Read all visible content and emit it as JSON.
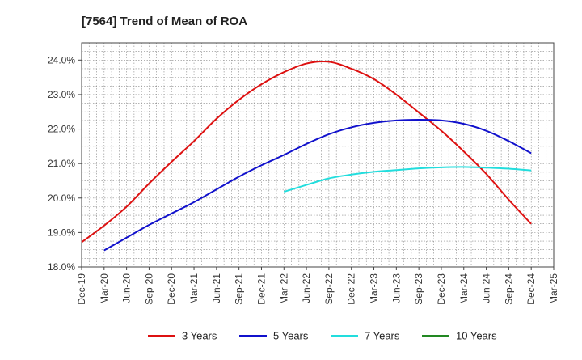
{
  "chart_data": {
    "type": "line",
    "title": "[7564]  Trend of Mean of ROA",
    "xlabel": "",
    "ylabel": "",
    "ylim": [
      18.0,
      24.5
    ],
    "y_ticks": [
      18.0,
      19.0,
      20.0,
      21.0,
      22.0,
      23.0,
      24.0
    ],
    "y_tick_suffix": "%",
    "grid": true,
    "legend_position": "bottom",
    "x_categories": [
      "Dec-19",
      "Mar-20",
      "Jun-20",
      "Sep-20",
      "Dec-20",
      "Mar-21",
      "Jun-21",
      "Sep-21",
      "Dec-21",
      "Mar-22",
      "Jun-22",
      "Sep-22",
      "Dec-22",
      "Mar-23",
      "Jun-23",
      "Sep-23",
      "Dec-23",
      "Mar-24",
      "Jun-24",
      "Sep-24",
      "Dec-24",
      "Mar-25"
    ],
    "series": [
      {
        "name": "3 Years",
        "color": "#dd1111",
        "values": [
          18.72,
          19.2,
          19.75,
          20.42,
          21.05,
          21.65,
          22.3,
          22.85,
          23.3,
          23.65,
          23.9,
          23.95,
          23.75,
          23.45,
          23.0,
          22.48,
          21.95,
          21.35,
          20.7,
          19.95,
          19.25,
          null
        ]
      },
      {
        "name": "5 Years",
        "color": "#1111cc",
        "values": [
          null,
          18.48,
          18.85,
          19.22,
          19.55,
          19.88,
          20.25,
          20.62,
          20.95,
          21.25,
          21.57,
          21.85,
          22.05,
          22.18,
          22.25,
          22.27,
          22.25,
          22.15,
          21.95,
          21.65,
          21.3,
          null
        ]
      },
      {
        "name": "7 Years",
        "color": "#22dddd",
        "values": [
          null,
          null,
          null,
          null,
          null,
          null,
          null,
          null,
          null,
          20.18,
          20.38,
          20.57,
          20.68,
          20.76,
          20.81,
          20.86,
          20.89,
          20.9,
          20.88,
          20.85,
          20.8,
          null
        ]
      },
      {
        "name": "10 Years",
        "color": "#228822",
        "values": [
          null,
          null,
          null,
          null,
          null,
          null,
          null,
          null,
          null,
          null,
          null,
          null,
          null,
          null,
          null,
          null,
          null,
          null,
          null,
          null,
          null,
          null
        ]
      }
    ]
  }
}
